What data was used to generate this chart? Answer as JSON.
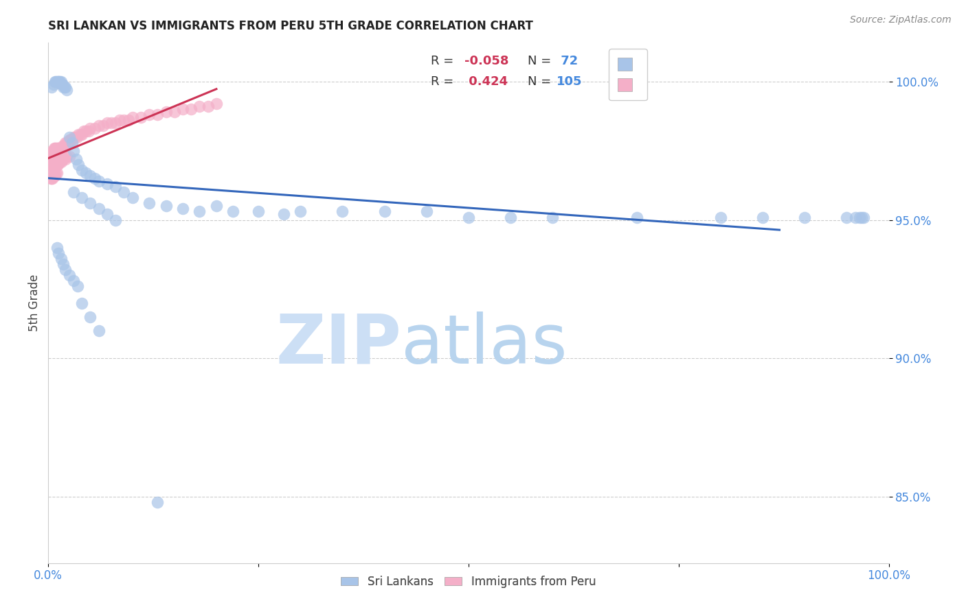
{
  "title": "SRI LANKAN VS IMMIGRANTS FROM PERU 5TH GRADE CORRELATION CHART",
  "source": "Source: ZipAtlas.com",
  "ylabel": "5th Grade",
  "legend_r_blue": "-0.058",
  "legend_n_blue": "72",
  "legend_r_pink": "0.424",
  "legend_n_pink": "105",
  "blue_color": "#a8c4e8",
  "pink_color": "#f4afc8",
  "blue_line_color": "#3366bb",
  "pink_line_color": "#cc3355",
  "watermark_color": "#ccdff5",
  "xlim": [
    0.0,
    1.0
  ],
  "ylim": [
    0.826,
    1.014
  ],
  "blue_scatter_x": [
    0.004,
    0.006,
    0.008,
    0.009,
    0.01,
    0.011,
    0.012,
    0.013,
    0.014,
    0.015,
    0.016,
    0.017,
    0.018,
    0.019,
    0.02,
    0.022,
    0.025,
    0.028,
    0.03,
    0.033,
    0.036,
    0.04,
    0.045,
    0.05,
    0.055,
    0.06,
    0.07,
    0.08,
    0.09,
    0.1,
    0.12,
    0.14,
    0.16,
    0.18,
    0.2,
    0.22,
    0.25,
    0.28,
    0.3,
    0.35,
    0.4,
    0.45,
    0.5,
    0.55,
    0.6,
    0.7,
    0.8,
    0.85,
    0.9,
    0.95,
    0.96,
    0.965,
    0.968,
    0.97,
    0.03,
    0.04,
    0.05,
    0.06,
    0.07,
    0.08,
    0.01,
    0.012,
    0.015,
    0.018,
    0.02,
    0.025,
    0.03,
    0.035,
    0.04,
    0.05,
    0.06,
    0.13
  ],
  "blue_scatter_y": [
    0.998,
    0.999,
    1.0,
    1.0,
    1.0,
    1.0,
    1.0,
    1.0,
    1.0,
    1.0,
    0.999,
    0.999,
    0.998,
    0.998,
    0.998,
    0.997,
    0.98,
    0.978,
    0.975,
    0.972,
    0.97,
    0.968,
    0.967,
    0.966,
    0.965,
    0.964,
    0.963,
    0.962,
    0.96,
    0.958,
    0.956,
    0.955,
    0.954,
    0.953,
    0.955,
    0.953,
    0.953,
    0.952,
    0.953,
    0.953,
    0.953,
    0.953,
    0.951,
    0.951,
    0.951,
    0.951,
    0.951,
    0.951,
    0.951,
    0.951,
    0.951,
    0.951,
    0.951,
    0.951,
    0.96,
    0.958,
    0.956,
    0.954,
    0.952,
    0.95,
    0.94,
    0.938,
    0.936,
    0.934,
    0.932,
    0.93,
    0.928,
    0.926,
    0.92,
    0.915,
    0.91,
    0.848
  ],
  "pink_scatter_x": [
    0.002,
    0.003,
    0.004,
    0.004,
    0.005,
    0.005,
    0.005,
    0.006,
    0.006,
    0.006,
    0.007,
    0.007,
    0.007,
    0.007,
    0.008,
    0.008,
    0.008,
    0.009,
    0.009,
    0.009,
    0.009,
    0.01,
    0.01,
    0.01,
    0.01,
    0.011,
    0.011,
    0.012,
    0.012,
    0.012,
    0.013,
    0.013,
    0.014,
    0.014,
    0.015,
    0.015,
    0.016,
    0.017,
    0.018,
    0.019,
    0.02,
    0.02,
    0.021,
    0.022,
    0.023,
    0.024,
    0.025,
    0.026,
    0.027,
    0.028,
    0.03,
    0.032,
    0.034,
    0.036,
    0.038,
    0.04,
    0.042,
    0.045,
    0.048,
    0.05,
    0.055,
    0.06,
    0.065,
    0.07,
    0.075,
    0.08,
    0.085,
    0.09,
    0.095,
    0.1,
    0.11,
    0.12,
    0.13,
    0.14,
    0.15,
    0.16,
    0.17,
    0.18,
    0.19,
    0.2,
    0.004,
    0.005,
    0.006,
    0.007,
    0.008,
    0.009,
    0.01,
    0.011,
    0.012,
    0.013,
    0.014,
    0.015,
    0.016,
    0.018,
    0.02,
    0.022,
    0.025,
    0.003,
    0.004,
    0.005,
    0.006,
    0.007,
    0.008,
    0.009,
    0.01
  ],
  "pink_scatter_y": [
    0.972,
    0.972,
    0.972,
    0.974,
    0.972,
    0.974,
    0.975,
    0.972,
    0.974,
    0.975,
    0.972,
    0.974,
    0.975,
    0.976,
    0.972,
    0.974,
    0.976,
    0.972,
    0.974,
    0.975,
    0.976,
    0.972,
    0.974,
    0.975,
    0.976,
    0.974,
    0.976,
    0.974,
    0.975,
    0.976,
    0.974,
    0.976,
    0.975,
    0.976,
    0.975,
    0.976,
    0.976,
    0.976,
    0.977,
    0.977,
    0.977,
    0.978,
    0.977,
    0.978,
    0.978,
    0.978,
    0.979,
    0.979,
    0.979,
    0.979,
    0.98,
    0.98,
    0.98,
    0.981,
    0.981,
    0.981,
    0.982,
    0.982,
    0.982,
    0.983,
    0.983,
    0.984,
    0.984,
    0.985,
    0.985,
    0.985,
    0.986,
    0.986,
    0.986,
    0.987,
    0.987,
    0.988,
    0.988,
    0.989,
    0.989,
    0.99,
    0.99,
    0.991,
    0.991,
    0.992,
    0.968,
    0.968,
    0.969,
    0.969,
    0.969,
    0.97,
    0.97,
    0.97,
    0.971,
    0.971,
    0.971,
    0.971,
    0.972,
    0.972,
    0.972,
    0.973,
    0.973,
    0.965,
    0.965,
    0.965,
    0.966,
    0.966,
    0.966,
    0.967,
    0.967
  ]
}
